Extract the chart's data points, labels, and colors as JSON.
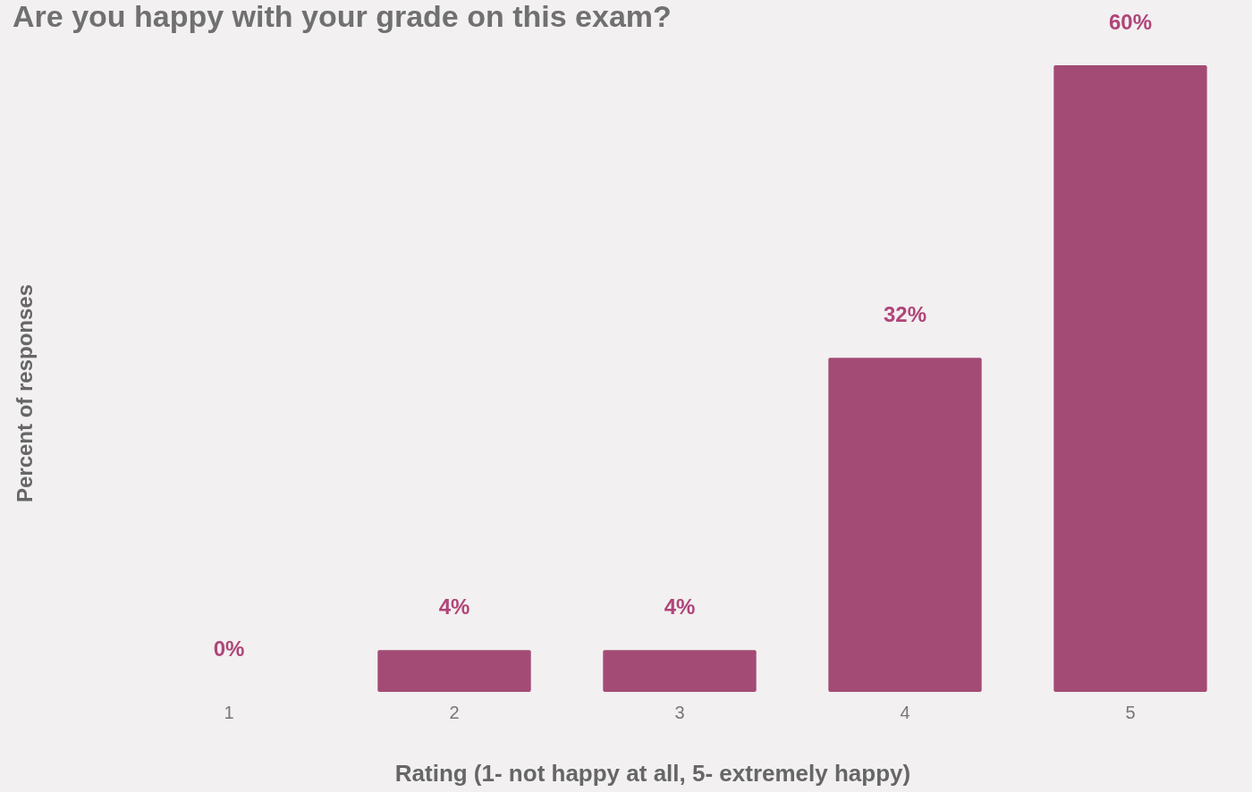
{
  "chart_data": {
    "type": "bar",
    "title": "Are you happy with your grade on this exam?",
    "xlabel": "Rating (1- not happy at all, 5- extremely happy)",
    "ylabel": "Percent  of responses",
    "categories": [
      "1",
      "2",
      "3",
      "4",
      "5"
    ],
    "values": [
      0,
      4,
      4,
      32,
      60
    ],
    "value_labels": [
      "0%",
      "4%",
      "4%",
      "32%",
      "60%"
    ],
    "color": "#a34b75"
  }
}
